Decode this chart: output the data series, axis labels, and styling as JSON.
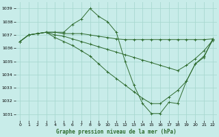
{
  "title": "Graphe pression niveau de la mer (hPa)",
  "bg_color": "#c8ece9",
  "grid_color": "#a8d8d0",
  "line_color": "#2d6a2d",
  "xlim": [
    -0.5,
    22.5
  ],
  "ylim": [
    1030.5,
    1039.5
  ],
  "yticks": [
    1031,
    1032,
    1033,
    1034,
    1035,
    1036,
    1037,
    1038,
    1039
  ],
  "xticks": [
    0,
    1,
    2,
    3,
    4,
    5,
    6,
    7,
    8,
    9,
    10,
    11,
    12,
    13,
    14,
    15,
    16,
    17,
    18,
    19,
    20,
    21,
    22
  ],
  "series": [
    {
      "x": [
        0,
        1,
        2,
        3,
        4,
        5,
        6,
        7,
        8,
        9,
        10,
        11,
        12,
        13,
        14,
        15,
        16,
        17,
        18,
        19,
        20,
        21,
        22
      ],
      "y": [
        1036.5,
        1037.0,
        1037.1,
        1037.2,
        1037.2,
        1037.2,
        1037.8,
        1038.2,
        1039.0,
        1038.4,
        1038.0,
        1037.2,
        1035.0,
        1033.2,
        1031.8,
        1031.05,
        1031.05,
        1031.9,
        1031.8,
        1033.5,
        1034.8,
        1035.3,
        1036.7
      ]
    },
    {
      "x": [
        0,
        1,
        2,
        3,
        4,
        5,
        6,
        7,
        8,
        9,
        10,
        11,
        12,
        13,
        14,
        15,
        16,
        17,
        18,
        19,
        20,
        21,
        22
      ],
      "y": [
        1036.5,
        1037.0,
        1037.1,
        1037.2,
        1037.2,
        1037.1,
        1037.1,
        1037.1,
        1037.0,
        1036.9,
        1036.8,
        1036.7,
        1036.65,
        1036.65,
        1036.65,
        1036.65,
        1036.65,
        1036.65,
        1036.65,
        1036.65,
        1036.65,
        1036.65,
        1036.7
      ]
    },
    {
      "x": [
        0,
        1,
        2,
        3,
        4,
        5,
        6,
        7,
        8,
        9,
        10,
        11,
        12,
        13,
        14,
        15,
        16,
        17,
        18,
        19,
        20,
        21,
        22
      ],
      "y": [
        1036.5,
        1037.0,
        1037.1,
        1037.2,
        1037.0,
        1036.9,
        1036.7,
        1036.5,
        1036.3,
        1036.1,
        1035.9,
        1035.7,
        1035.5,
        1035.3,
        1035.1,
        1034.9,
        1034.7,
        1034.5,
        1034.3,
        1034.7,
        1035.2,
        1035.8,
        1036.6
      ]
    },
    {
      "x": [
        0,
        1,
        2,
        3,
        4,
        5,
        6,
        7,
        8,
        9,
        10,
        11,
        12,
        13,
        14,
        15,
        16,
        17,
        18,
        19,
        20,
        21,
        22
      ],
      "y": [
        1036.5,
        1037.0,
        1037.1,
        1037.2,
        1036.8,
        1036.5,
        1036.2,
        1035.8,
        1035.4,
        1034.8,
        1034.2,
        1033.7,
        1033.2,
        1032.7,
        1032.2,
        1031.8,
        1031.8,
        1032.3,
        1032.8,
        1033.5,
        1034.8,
        1035.4,
        1036.6
      ]
    }
  ]
}
